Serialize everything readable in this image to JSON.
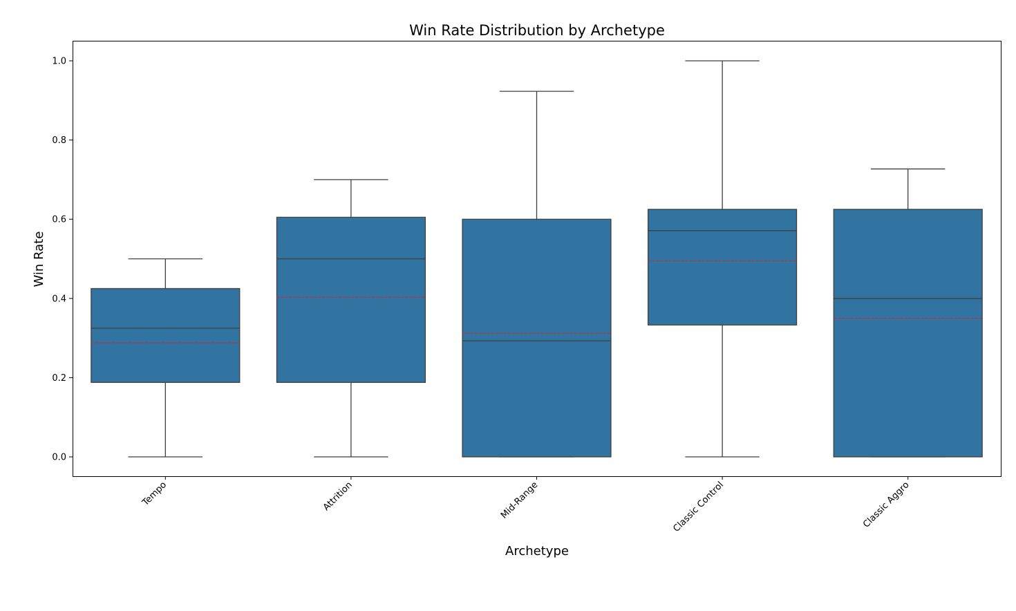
{
  "chart_data": {
    "type": "box",
    "title": "Win Rate Distribution by Archetype",
    "xlabel": "Archetype",
    "ylabel": "Win Rate",
    "ylim": [
      -0.05,
      1.05
    ],
    "yticks": [
      "0.0",
      "0.2",
      "0.4",
      "0.6",
      "0.8",
      "1.0"
    ],
    "grid": false,
    "categories": [
      "Tempo",
      "Attrition",
      "Mid-Range",
      "Classic Control",
      "Classic Aggro"
    ],
    "boxes": [
      {
        "category": "Tempo",
        "whisker_low": 0.0,
        "q1": 0.188,
        "median": 0.325,
        "q3": 0.425,
        "whisker_high": 0.5,
        "mean": 0.288
      },
      {
        "category": "Attrition",
        "whisker_low": 0.0,
        "q1": 0.188,
        "median": 0.5,
        "q3": 0.605,
        "whisker_high": 0.7,
        "mean": 0.403
      },
      {
        "category": "Mid-Range",
        "whisker_low": 0.0,
        "q1": 0.0,
        "median": 0.293,
        "q3": 0.6,
        "whisker_high": 0.923,
        "mean": 0.312
      },
      {
        "category": "Classic Control",
        "whisker_low": 0.0,
        "q1": 0.333,
        "median": 0.571,
        "q3": 0.625,
        "whisker_high": 1.0,
        "mean": 0.495
      },
      {
        "category": "Classic Aggro",
        "whisker_low": 0.0,
        "q1": 0.0,
        "median": 0.4,
        "q3": 0.625,
        "whisker_high": 0.727,
        "mean": 0.35
      }
    ],
    "colors": {
      "box_fill": "#3274a1",
      "box_edge": "#3f3f3f",
      "mean_line": "#d62728"
    }
  }
}
